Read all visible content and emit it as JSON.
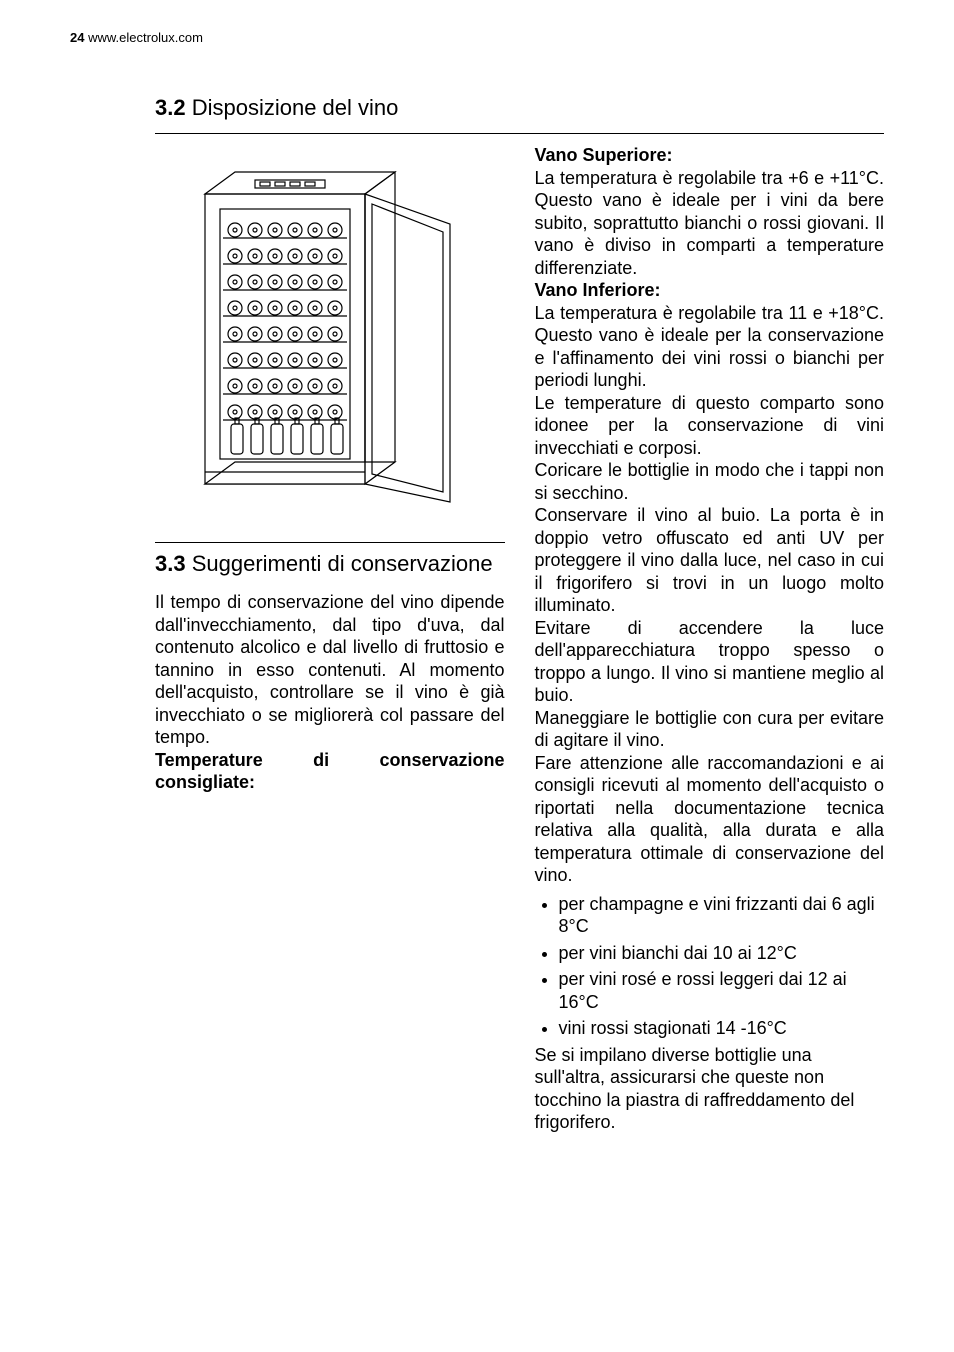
{
  "header": {
    "page_number": "24",
    "site": "www.electrolux.com"
  },
  "section_3_2": {
    "number": "3.2",
    "title": "Disposizione del vino",
    "right": {
      "vano_sup_label": "Vano Superiore:",
      "vano_sup_text": "La temperatura è regolabile tra +6 e +11°C. Questo vano è ideale per i vini da bere subito, soprattutto bianchi o rossi giovani. Il vano è diviso in comparti a temperature differenziate.",
      "vano_inf_label": "Vano Inferiore:",
      "vano_inf_text": "La temperatura è regolabile tra 11 e +18°C. Questo vano è ideale per la conservazione e l'affinamento dei vini rossi o bianchi per periodi lunghi.",
      "para1": "Le temperature di questo comparto sono idonee per la conservazione di vini invecchiati e corposi.",
      "para2": "Coricare le bottiglie in modo che i tappi non si secchino.",
      "para3": "Conservare il vino al buio. La porta è in doppio vetro offuscato ed anti UV per proteggere il vino dalla luce, nel caso in cui il frigorifero si trovi in un luogo molto illuminato.",
      "para4": "Evitare di accendere la luce dell'apparecchiatura troppo spesso o troppo a lungo. Il vino si mantiene meglio al buio.",
      "para5": "Maneggiare le bottiglie con cura per evitare di agitare il vino.",
      "para6": "Fare attenzione alle raccomandazioni e ai consigli ricevuti al momento dell'acquisto o riportati nella documentazione tecnica relativa alla qualità, alla durata e alla temperatura ottimale di conservazione del vino."
    }
  },
  "section_3_3": {
    "number": "3.3",
    "title": "Suggerimenti di conservazione",
    "intro": "Il tempo di conservazione del vino dipende dall'invecchiamento, dal tipo d'uva, dal contenuto alcolico e dal livello di fruttosio e tannino in esso contenuti. Al momento dell'acquisto, controllare se il vino è già invecchiato o se migliorerà col passare del tempo.",
    "temps_label": "Temperature di conservazione consigliate:",
    "bullets": [
      "per champagne e vini frizzanti dai 6 agli 8°C",
      "per vini bianchi dai 10 ai 12°C",
      "per vini rosé e rossi leggeri dai 12 ai 16°C",
      "vini rossi stagionati 14 -16°C"
    ],
    "closing": "Se si impilano diverse bottiglie una sull'altra, assicurarsi che queste non tocchino la piastra di raffreddamento del frigorifero."
  },
  "figure": {
    "stroke": "#000000",
    "bg": "#ffffff"
  }
}
